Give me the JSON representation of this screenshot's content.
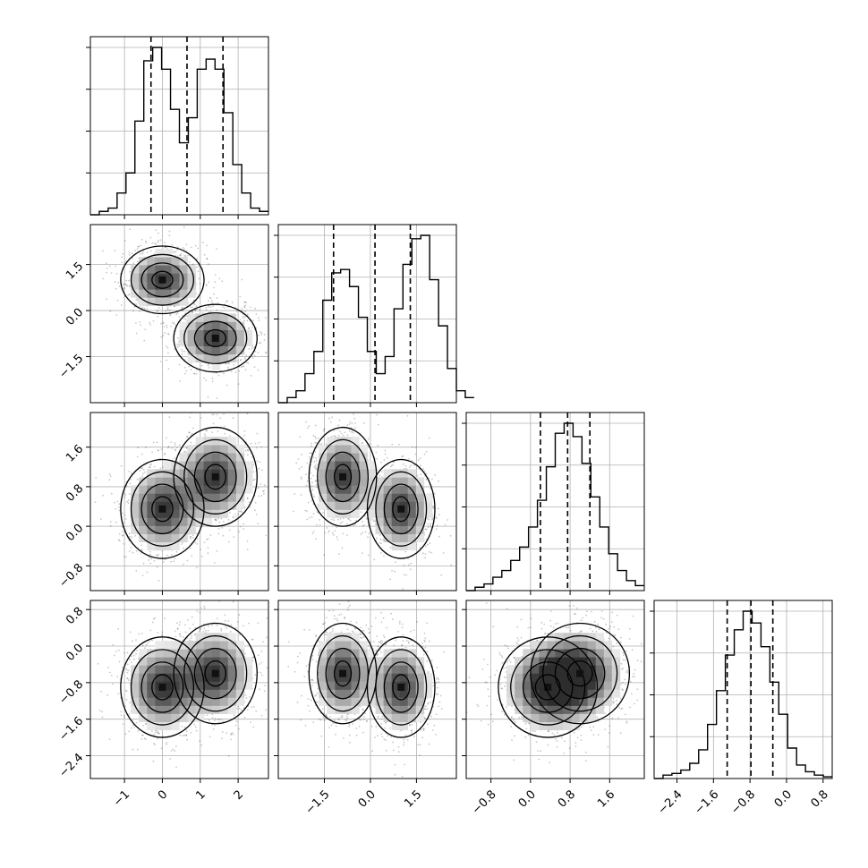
{
  "chart_data": {
    "type": "corner",
    "grid": true,
    "n_params": 4,
    "params": [
      {
        "range": [
          -1.9,
          2.8
        ],
        "ticks": [
          -1,
          0,
          1,
          2
        ],
        "tick_labels": [
          "−1",
          "0",
          "1",
          "2"
        ],
        "quantiles": [
          -0.3,
          0.65,
          1.6
        ],
        "hist": {
          "edges_start": -1.9,
          "bin_width": 0.235,
          "counts": [
            0,
            2,
            4,
            13,
            25,
            56,
            92,
            100,
            87,
            63,
            43,
            58,
            87,
            93,
            87,
            61,
            30,
            13,
            4,
            2
          ]
        }
      },
      {
        "range": [
          -3.0,
          2.8
        ],
        "ticks": [
          -1.5,
          0.0,
          1.5
        ],
        "tick_labels": [
          "−1.5",
          "0.0",
          "1.5"
        ],
        "quantiles": [
          -1.2,
          0.15,
          1.3
        ],
        "hist": {
          "edges_start": -3.0,
          "bin_width": 0.29,
          "counts": [
            0,
            3,
            7,
            17,
            30,
            60,
            76,
            78,
            68,
            50,
            30,
            17,
            27,
            55,
            81,
            96,
            98,
            72,
            45,
            20,
            7,
            3
          ]
        }
      },
      {
        "range": [
          -1.3,
          2.3
        ],
        "ticks": [
          -0.8,
          0.0,
          0.8,
          1.6
        ],
        "tick_labels": [
          "−0.8",
          "0.0",
          "0.8",
          "1.6"
        ],
        "quantiles": [
          0.2,
          0.75,
          1.2
        ],
        "hist": {
          "edges_start": -1.3,
          "bin_width": 0.18,
          "counts": [
            0,
            2,
            4,
            8,
            12,
            18,
            26,
            38,
            54,
            74,
            94,
            100,
            92,
            76,
            56,
            38,
            22,
            12,
            6,
            3
          ]
        }
      },
      {
        "range": [
          -2.9,
          1.0
        ],
        "ticks": [
          -2.4,
          -1.6,
          -0.8,
          0.0,
          0.8
        ],
        "tick_labels": [
          "−2.4",
          "−1.6",
          "−0.8",
          "0.0",
          "0.8"
        ],
        "quantiles": [
          -1.3,
          -0.78,
          -0.3
        ],
        "hist": {
          "edges_start": -2.9,
          "bin_width": 0.195,
          "counts": [
            0,
            2,
            3,
            5,
            9,
            17,
            32,
            52,
            73,
            88,
            99,
            92,
            78,
            57,
            38,
            18,
            8,
            4,
            2,
            1
          ]
        }
      }
    ],
    "modes": [
      {
        "center": [
          0.0,
          1.0,
          0.35,
          -0.9
        ],
        "sigma": [
          0.55,
          0.55,
          0.5,
          0.55
        ],
        "weight": 0.5
      },
      {
        "center": [
          1.4,
          -0.9,
          1.0,
          -0.6
        ],
        "sigma": [
          0.55,
          0.55,
          0.5,
          0.55
        ],
        "weight": 0.5
      }
    ]
  }
}
